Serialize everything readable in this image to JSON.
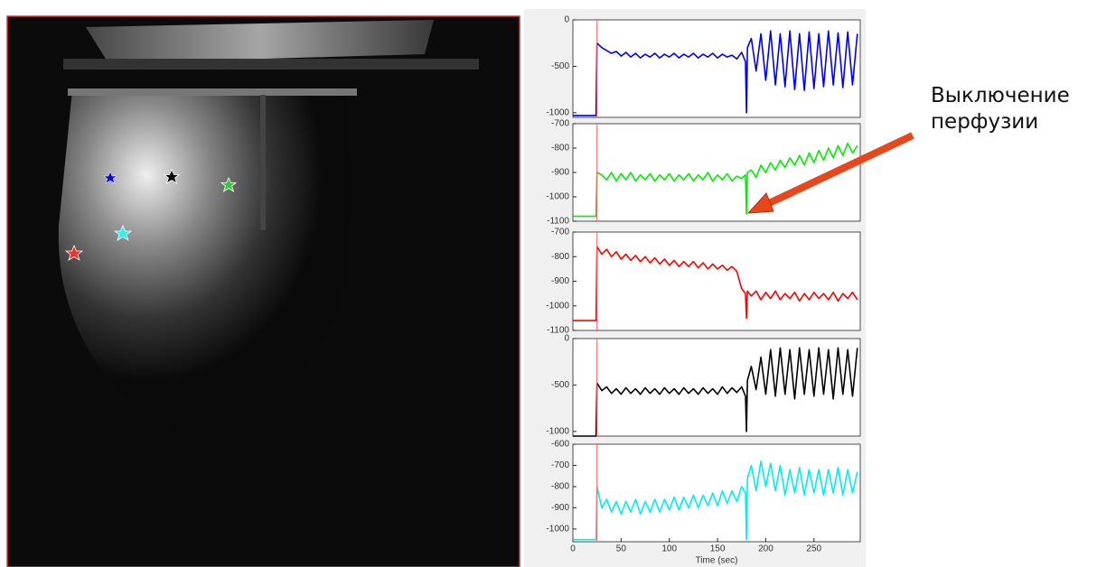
{
  "annotation": "Выключение перфузии",
  "time_marker": 25,
  "chart_data": [
    {
      "type": "line",
      "xlim": [
        0,
        298
      ],
      "ylim": [
        -1050,
        0
      ],
      "yticks": [
        -1000,
        -500,
        0
      ],
      "x": [
        0,
        10,
        20,
        24,
        25,
        30,
        35,
        40,
        45,
        50,
        55,
        60,
        65,
        70,
        75,
        80,
        85,
        90,
        95,
        100,
        105,
        110,
        115,
        120,
        125,
        130,
        135,
        140,
        145,
        150,
        155,
        160,
        165,
        170,
        175,
        179,
        180,
        181,
        185,
        190,
        195,
        200,
        205,
        210,
        215,
        220,
        225,
        230,
        235,
        240,
        245,
        250,
        255,
        260,
        265,
        270,
        275,
        280,
        285,
        290,
        295
      ],
      "series": [
        {
          "color": "#0000ff",
          "values": [
            -1030,
            -1030,
            -1030,
            -1030,
            -250,
            -300,
            -330,
            -360,
            -340,
            -390,
            -350,
            -400,
            -360,
            -410,
            -370,
            -400,
            -360,
            -410,
            -370,
            -400,
            -360,
            -410,
            -370,
            -400,
            -360,
            -410,
            -370,
            -400,
            -360,
            -410,
            -370,
            -400,
            -380,
            -420,
            -350,
            -450,
            -1000,
            -300,
            -200,
            -550,
            -150,
            -650,
            -120,
            -700,
            -150,
            -720,
            -120,
            -750,
            -150,
            -760,
            -130,
            -740,
            -150,
            -720,
            -120,
            -700,
            -140,
            -730,
            -130,
            -700,
            -150
          ]
        }
      ]
    },
    {
      "type": "line",
      "xlim": [
        0,
        298
      ],
      "ylim": [
        -1100,
        -700
      ],
      "yticks": [
        -1100,
        -1000,
        -900,
        -800,
        -700
      ],
      "x": [
        0,
        10,
        20,
        24,
        25,
        30,
        35,
        40,
        45,
        50,
        55,
        60,
        65,
        70,
        75,
        80,
        85,
        90,
        95,
        100,
        105,
        110,
        115,
        120,
        125,
        130,
        135,
        140,
        145,
        150,
        155,
        160,
        165,
        170,
        175,
        179,
        180,
        181,
        185,
        190,
        195,
        200,
        205,
        210,
        215,
        220,
        225,
        230,
        235,
        240,
        245,
        250,
        255,
        260,
        265,
        270,
        275,
        280,
        285,
        290,
        295
      ],
      "series": [
        {
          "color": "#00ee00",
          "values": [
            -1080,
            -1080,
            -1080,
            -1080,
            -900,
            -910,
            -930,
            -900,
            -935,
            -905,
            -930,
            -900,
            -935,
            -910,
            -930,
            -905,
            -935,
            -910,
            -930,
            -905,
            -935,
            -910,
            -930,
            -905,
            -935,
            -910,
            -930,
            -900,
            -935,
            -910,
            -930,
            -905,
            -935,
            -915,
            -925,
            -910,
            -1070,
            -900,
            -890,
            -920,
            -870,
            -900,
            -860,
            -890,
            -850,
            -880,
            -840,
            -870,
            -830,
            -870,
            -820,
            -860,
            -810,
            -850,
            -800,
            -840,
            -790,
            -830,
            -780,
            -820,
            -790
          ]
        }
      ]
    },
    {
      "type": "line",
      "xlim": [
        0,
        298
      ],
      "ylim": [
        -1100,
        -700
      ],
      "yticks": [
        -1100,
        -1000,
        -900,
        -800,
        -700
      ],
      "x": [
        0,
        10,
        20,
        24,
        25,
        30,
        35,
        40,
        45,
        50,
        55,
        60,
        65,
        70,
        75,
        80,
        85,
        90,
        95,
        100,
        105,
        110,
        115,
        120,
        125,
        130,
        135,
        140,
        145,
        150,
        155,
        160,
        165,
        170,
        175,
        179,
        180,
        181,
        185,
        190,
        195,
        200,
        205,
        210,
        215,
        220,
        225,
        230,
        235,
        240,
        245,
        250,
        255,
        260,
        265,
        270,
        275,
        280,
        285,
        290,
        295
      ],
      "series": [
        {
          "color": "#ff0000",
          "values": [
            -1060,
            -1060,
            -1060,
            -1060,
            -760,
            -790,
            -770,
            -800,
            -780,
            -810,
            -790,
            -815,
            -795,
            -820,
            -800,
            -825,
            -805,
            -830,
            -810,
            -835,
            -815,
            -840,
            -820,
            -840,
            -820,
            -845,
            -825,
            -850,
            -830,
            -850,
            -835,
            -855,
            -840,
            -860,
            -930,
            -950,
            -1050,
            -940,
            -960,
            -940,
            -975,
            -945,
            -970,
            -940,
            -975,
            -950,
            -970,
            -945,
            -980,
            -950,
            -975,
            -945,
            -970,
            -950,
            -975,
            -945,
            -980,
            -950,
            -970,
            -945,
            -975
          ]
        }
      ]
    },
    {
      "type": "line",
      "xlim": [
        0,
        298
      ],
      "ylim": [
        -1050,
        0
      ],
      "yticks": [
        -1000,
        -500,
        0
      ],
      "x": [
        0,
        10,
        20,
        24,
        25,
        30,
        35,
        40,
        45,
        50,
        55,
        60,
        65,
        70,
        75,
        80,
        85,
        90,
        95,
        100,
        105,
        110,
        115,
        120,
        125,
        130,
        135,
        140,
        145,
        150,
        155,
        160,
        165,
        170,
        175,
        179,
        180,
        181,
        185,
        190,
        195,
        200,
        205,
        210,
        215,
        220,
        225,
        230,
        235,
        240,
        245,
        250,
        255,
        260,
        265,
        270,
        275,
        280,
        285,
        290,
        295
      ],
      "series": [
        {
          "color": "#000000",
          "values": [
            -1050,
            -1050,
            -1050,
            -1050,
            -480,
            -560,
            -520,
            -590,
            -540,
            -600,
            -530,
            -590,
            -540,
            -600,
            -530,
            -590,
            -540,
            -600,
            -530,
            -590,
            -540,
            -600,
            -530,
            -590,
            -540,
            -600,
            -530,
            -590,
            -540,
            -600,
            -520,
            -590,
            -530,
            -580,
            -520,
            -620,
            -1000,
            -450,
            -300,
            -550,
            -200,
            -600,
            -120,
            -620,
            -100,
            -600,
            -120,
            -650,
            -100,
            -600,
            -120,
            -620,
            -100,
            -600,
            -120,
            -650,
            -100,
            -600,
            -120,
            -620,
            -100
          ]
        }
      ]
    },
    {
      "type": "line",
      "xlim": [
        0,
        298
      ],
      "ylim": [
        -1060,
        -600
      ],
      "yticks": [
        -1000,
        -900,
        -800,
        -700,
        -600
      ],
      "xticks": [
        0,
        50,
        100,
        150,
        200,
        250
      ],
      "xlabel": "Time (sec)",
      "x": [
        0,
        10,
        20,
        24,
        25,
        30,
        35,
        40,
        45,
        50,
        55,
        60,
        65,
        70,
        75,
        80,
        85,
        90,
        95,
        100,
        105,
        110,
        115,
        120,
        125,
        130,
        135,
        140,
        145,
        150,
        155,
        160,
        165,
        170,
        175,
        179,
        180,
        181,
        185,
        190,
        195,
        200,
        205,
        210,
        215,
        220,
        225,
        230,
        235,
        240,
        245,
        250,
        255,
        260,
        265,
        270,
        275,
        280,
        285,
        290,
        295
      ],
      "series": [
        {
          "color": "#00eeee",
          "values": [
            -1050,
            -1050,
            -1050,
            -1050,
            -800,
            -900,
            -860,
            -920,
            -870,
            -930,
            -870,
            -920,
            -860,
            -930,
            -870,
            -920,
            -860,
            -920,
            -860,
            -910,
            -850,
            -910,
            -850,
            -900,
            -840,
            -900,
            -840,
            -890,
            -830,
            -890,
            -820,
            -880,
            -820,
            -870,
            -800,
            -830,
            -1050,
            -760,
            -700,
            -820,
            -680,
            -800,
            -690,
            -820,
            -700,
            -840,
            -720,
            -830,
            -710,
            -840,
            -720,
            -830,
            -720,
            -840,
            -720,
            -830,
            -710,
            -840,
            -720,
            -830,
            -730
          ]
        }
      ]
    }
  ]
}
